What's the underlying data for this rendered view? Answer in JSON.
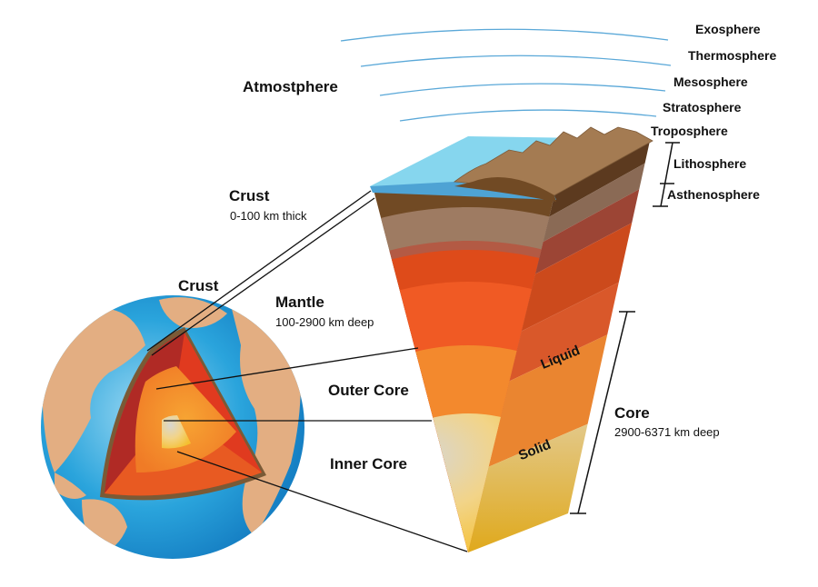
{
  "atmosphere": {
    "title": "Atmostphere",
    "layers": [
      "Exosphere",
      "Thermosphere",
      "Mesosphere",
      "Stratosphere",
      "Troposphere"
    ]
  },
  "lithosphere_label": "Lithosphere",
  "asthenosphere_label": "Asthenosphere",
  "crust": {
    "title": "Crust",
    "detail": "0-100 km thick"
  },
  "globe_crust_label": "Crust",
  "mantle": {
    "title": "Mantle",
    "detail": "100-2900 km deep"
  },
  "outer_core": {
    "title": "Outer Core"
  },
  "inner_core": {
    "title": "Inner Core"
  },
  "core": {
    "title": "Core",
    "detail": "2900-6371 km deep"
  },
  "liquid_label": "Liquid",
  "solid_label": "Solid",
  "colors": {
    "ocean": "#1e9ad6",
    "land": "#e3ae82",
    "atmosphere_line": "#5aa8d8",
    "crust": "#714a24",
    "mantle": "#de4b1a",
    "outer_core": "#f3892d",
    "inner_core": "#f7c843"
  }
}
